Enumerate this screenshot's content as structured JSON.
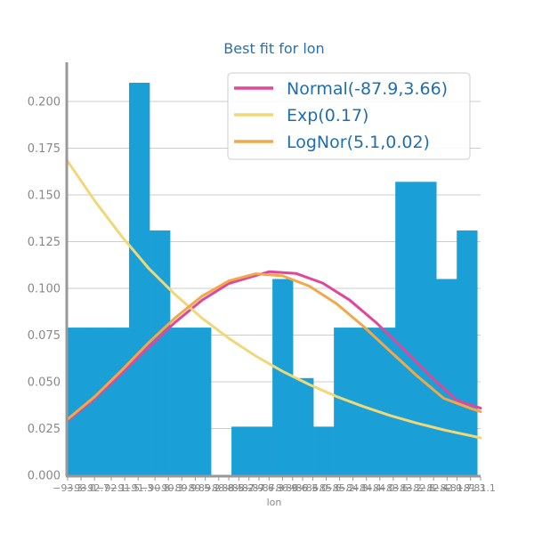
{
  "chart_data": {
    "type": "bar",
    "title": "Best fit for lon",
    "xlabel": "lon",
    "ylabel": "",
    "xlim": [
      -93.3,
      -81.0
    ],
    "ylim": [
      0,
      0.22
    ],
    "yticks": [
      "0.000",
      "0.025",
      "0.050",
      "0.075",
      "0.100",
      "0.125",
      "0.150",
      "0.175",
      "0.200"
    ],
    "grid": "horizontal",
    "legend_position": "top-right",
    "bar_color": "#1a9fd6",
    "histogram": {
      "bin_start": -93.3,
      "bin_width": 0.61,
      "values": [
        0.079,
        0.079,
        0.079,
        0.21,
        0.131,
        0.079,
        0.079,
        0.0,
        0.026,
        0.026,
        0.105,
        0.052,
        0.026,
        0.079,
        0.079,
        0.079,
        0.157,
        0.157,
        0.105,
        0.131
      ]
    },
    "x_tick_labels": [
      {
        "x": -93.3,
        "label": "−93.3"
      },
      {
        "x": -92.9,
        "label": "−93.0"
      },
      {
        "x": -92.5,
        "label": "−92.7"
      },
      {
        "x": -92.0,
        "label": "−92.1"
      },
      {
        "x": -91.6,
        "label": "−91.5"
      },
      {
        "x": -91.2,
        "label": "−91.3"
      },
      {
        "x": -90.7,
        "label": "−90.8"
      },
      {
        "x": -90.3,
        "label": "−90.3"
      },
      {
        "x": -89.9,
        "label": "−89.9"
      },
      {
        "x": -89.5,
        "label": "−89.5"
      },
      {
        "x": -89.2,
        "label": "−89.2"
      },
      {
        "x": -88.8,
        "label": "−88.8"
      },
      {
        "x": -88.5,
        "label": "−88.5"
      },
      {
        "x": -88.2,
        "label": "−88.2"
      },
      {
        "x": -87.9,
        "label": "−87.9"
      },
      {
        "x": -87.6,
        "label": "−87.6"
      },
      {
        "x": -87.3,
        "label": "−87.3"
      },
      {
        "x": -86.9,
        "label": "−86.9"
      },
      {
        "x": -86.6,
        "label": "−86.6"
      },
      {
        "x": -86.3,
        "label": "−86.3"
      },
      {
        "x": -86.0,
        "label": "−86.0"
      },
      {
        "x": -85.6,
        "label": "−85.6"
      },
      {
        "x": -85.2,
        "label": "−85.2"
      },
      {
        "x": -84.8,
        "label": "−84.8"
      },
      {
        "x": -84.4,
        "label": "−84.4"
      },
      {
        "x": -84.0,
        "label": "−84.0"
      },
      {
        "x": -83.6,
        "label": "−83.6"
      },
      {
        "x": -83.2,
        "label": "−83.2"
      },
      {
        "x": -82.8,
        "label": "−82.8"
      },
      {
        "x": -82.4,
        "label": "−82.4"
      },
      {
        "x": -82.0,
        "label": "−82.0"
      },
      {
        "x": -81.7,
        "label": "−81.7"
      },
      {
        "x": -81.3,
        "label": "−81.3"
      },
      {
        "x": -81.0,
        "label": "−81.1"
      }
    ],
    "series": [
      {
        "name": "Normal(-87.9,3.66)",
        "color": "#e0479b",
        "x": [
          -93.3,
          -92.5,
          -91.7,
          -90.9,
          -90.1,
          -89.3,
          -88.5,
          -87.9,
          -87.3,
          -86.5,
          -85.7,
          -84.9,
          -84.1,
          -83.3,
          -82.5,
          -81.7,
          -81.0
        ],
        "y": [
          0.0294,
          0.041,
          0.0544,
          0.0684,
          0.0818,
          0.0936,
          0.1026,
          0.1058,
          0.1089,
          0.108,
          0.1028,
          0.0937,
          0.0815,
          0.0676,
          0.0532,
          0.04,
          0.0359
        ]
      },
      {
        "name": "Exp(0.17)",
        "color": "#f0d878",
        "x": [
          -93.3,
          -92.5,
          -91.7,
          -90.9,
          -90.1,
          -89.3,
          -88.5,
          -87.7,
          -86.9,
          -86.1,
          -85.3,
          -84.5,
          -83.7,
          -82.9,
          -82.1,
          -81.3,
          -81.0
        ],
        "y": [
          0.168,
          0.147,
          0.128,
          0.111,
          0.0967,
          0.0841,
          0.0733,
          0.0638,
          0.0556,
          0.0485,
          0.0422,
          0.0368,
          0.032,
          0.0279,
          0.0243,
          0.0212,
          0.02
        ]
      },
      {
        "name": "LogNor(5.1,0.02)",
        "color": "#f0a848",
        "x": [
          -93.3,
          -92.5,
          -91.7,
          -90.9,
          -90.1,
          -89.3,
          -88.5,
          -87.7,
          -86.9,
          -86.1,
          -85.3,
          -84.5,
          -83.7,
          -82.9,
          -82.1,
          -81.3,
          -81.0
        ],
        "y": [
          0.03,
          0.042,
          0.056,
          0.0707,
          0.0842,
          0.0958,
          0.104,
          0.1078,
          0.1067,
          0.1012,
          0.0919,
          0.0798,
          0.0665,
          0.0533,
          0.0412,
          0.0358,
          0.034
        ]
      }
    ]
  }
}
